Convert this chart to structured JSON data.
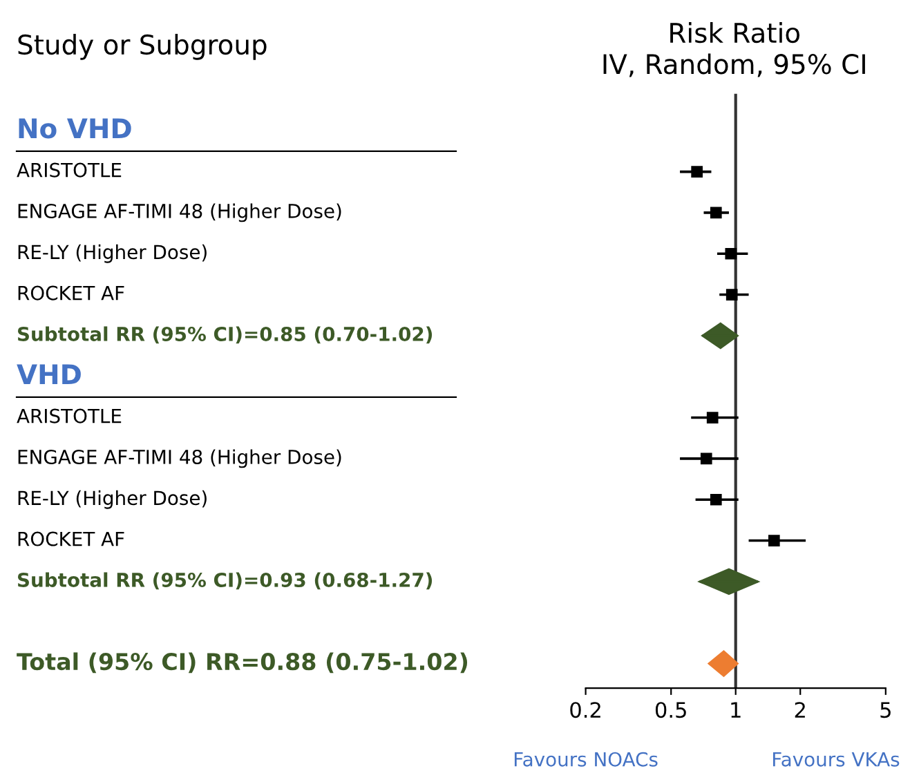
{
  "chart_data": {
    "type": "scatter",
    "orientation": "horizontal",
    "title": "Risk Ratio",
    "subtitle": "IV, Random, 95% CI",
    "ylabel": "Study or Subgroup",
    "categories": [
      "No VHD",
      "ARISTOTLE",
      "ENGAGE AF-TIMI 48 (Higher Dose)",
      "RE-LY (Higher Dose)",
      "ROCKET AF",
      "Subtotal RR (95% CI)=0.85 (0.70-1.02)",
      "VHD",
      "ARISTOTLE",
      "ENGAGE AF-TIMI 48 (Higher Dose)",
      "RE-LY (Higher Dose)",
      "ROCKET AF",
      "Subtotal RR (95% CI)=0.93 (0.68-1.27)",
      null,
      "Total (95% CI) RR=0.88 (0.75-1.02)"
    ],
    "series": [
      {
        "color": "#000000",
        "marker": "square",
        "values": [
          null,
          0.66,
          0.81,
          0.95,
          0.96,
          null,
          null,
          0.78,
          0.73,
          0.81,
          1.51,
          null,
          null,
          null
        ],
        "errors": [
          null,
          [
            0.55,
            0.77
          ],
          [
            0.71,
            0.93
          ],
          [
            0.82,
            1.14
          ],
          [
            0.84,
            1.15
          ],
          null,
          null,
          [
            0.62,
            1.03
          ],
          [
            0.55,
            1.03
          ],
          [
            0.65,
            1.03
          ],
          [
            1.15,
            2.12
          ],
          null,
          null,
          null
        ]
      },
      {
        "color": "#3d5a27",
        "marker": "diamond",
        "values": [
          null,
          null,
          null,
          null,
          null,
          0.85,
          null,
          null,
          null,
          null,
          null,
          0.93,
          null,
          null
        ],
        "errors": [
          null,
          null,
          null,
          null,
          null,
          [
            0.7,
            1.02
          ],
          null,
          null,
          null,
          null,
          null,
          [
            0.68,
            1.27
          ],
          null,
          null
        ]
      },
      {
        "color": "#ed7d31",
        "marker": "diamond",
        "values": [
          null,
          null,
          null,
          null,
          null,
          null,
          null,
          null,
          null,
          null,
          null,
          null,
          null,
          0.88
        ],
        "errors": [
          null,
          null,
          null,
          null,
          null,
          null,
          null,
          null,
          null,
          null,
          null,
          null,
          null,
          [
            0.75,
            1.02
          ]
        ]
      }
    ],
    "log": "x",
    "xlim": [
      0.2,
      5
    ],
    "xticks": [
      0.2,
      0.5,
      1,
      2,
      5
    ],
    "grid": false,
    "legend": false,
    "ref_lines": [
      {
        "axis": "x",
        "value": 1,
        "color": "#333333"
      }
    ],
    "annotations": [
      "Favours NOACs",
      "Favours VKAs"
    ]
  }
}
